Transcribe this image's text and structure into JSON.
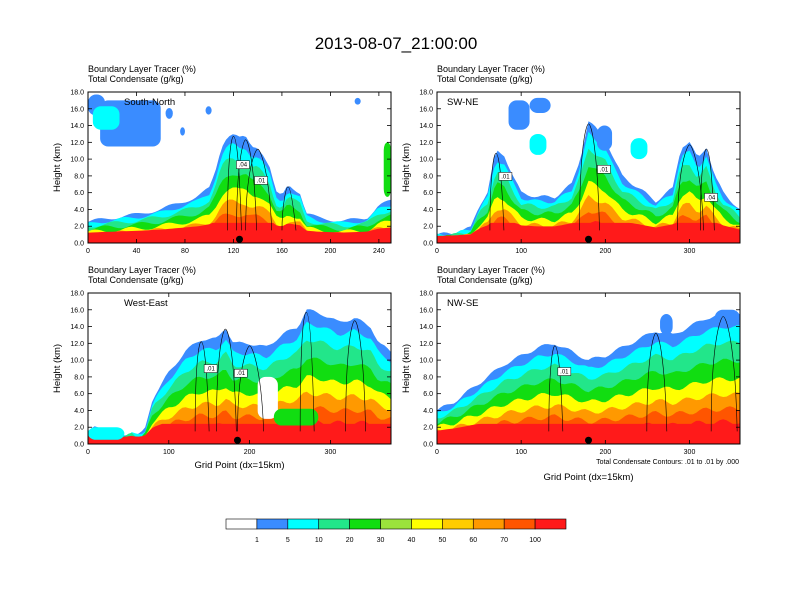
{
  "figure_title": "2013-08-07_21:00:00",
  "colorbar": {
    "levels": [
      "1",
      "5",
      "10",
      "20",
      "30",
      "40",
      "50",
      "60",
      "70",
      "100"
    ],
    "colors": [
      "#ffffff",
      "#3a8cff",
      "#00ffff",
      "#22e68a",
      "#11dd11",
      "#9be33c",
      "#ffff00",
      "#ffcc00",
      "#ff9900",
      "#ff5500",
      "#ff1a1a"
    ]
  },
  "contour_note": "Total Condensate Contours: .01 to .01 by .000",
  "chart_data": [
    {
      "type": "heatmap",
      "title_lines": [
        "Boundary Layer Tracer    (%)",
        "Total Condensate    (g/kg)"
      ],
      "label": "South-North",
      "ylabel": "Height (km)",
      "xlabel": "",
      "xlim": [
        0,
        250
      ],
      "ylim": [
        0,
        18
      ],
      "xticks": [
        0,
        40,
        80,
        120,
        160,
        200,
        240
      ],
      "yticks": [
        "0.0",
        "2.0",
        "4.0",
        "6.0",
        "8.0",
        "10.0",
        "12.0",
        "14.0",
        "16.0",
        "18.0"
      ],
      "marker_x": 125,
      "contour_labels": [
        ".04",
        ".01"
      ],
      "top_profile": [
        [
          0,
          2.5
        ],
        [
          10,
          2.8
        ],
        [
          20,
          3.0
        ],
        [
          30,
          3.2
        ],
        [
          40,
          3.4
        ],
        [
          50,
          3.7
        ],
        [
          60,
          4.0
        ],
        [
          70,
          4.5
        ],
        [
          80,
          5.0
        ],
        [
          90,
          5.5
        ],
        [
          100,
          6.5
        ],
        [
          105,
          8.5
        ],
        [
          110,
          11.5
        ],
        [
          115,
          12.8
        ],
        [
          120,
          13.0
        ],
        [
          125,
          12.5
        ],
        [
          130,
          12.6
        ],
        [
          135,
          11.5
        ],
        [
          140,
          11.5
        ],
        [
          145,
          10.5
        ],
        [
          150,
          9.0
        ],
        [
          155,
          6.0
        ],
        [
          160,
          5.5
        ],
        [
          165,
          7.0
        ],
        [
          170,
          6.5
        ],
        [
          175,
          6.0
        ],
        [
          180,
          3.5
        ],
        [
          190,
          3.0
        ],
        [
          200,
          2.8
        ],
        [
          210,
          2.6
        ],
        [
          220,
          2.8
        ],
        [
          230,
          3.0
        ],
        [
          240,
          4.5
        ],
        [
          250,
          5.0
        ]
      ],
      "blobs": [
        {
          "x": 0,
          "y": 15.2,
          "w": 14,
          "h": 2.5,
          "level": 1
        },
        {
          "x": 10,
          "y": 11.5,
          "w": 50,
          "h": 5.5,
          "level": 1
        },
        {
          "x": 4,
          "y": 13.5,
          "w": 22,
          "h": 2.8,
          "level": 2
        },
        {
          "x": 64,
          "y": 14.8,
          "w": 6,
          "h": 1.3,
          "level": 1
        },
        {
          "x": 76,
          "y": 12.8,
          "w": 4,
          "h": 1.0,
          "level": 1
        },
        {
          "x": 97,
          "y": 15.3,
          "w": 5,
          "h": 1.0,
          "level": 1
        },
        {
          "x": 220,
          "y": 16.5,
          "w": 5,
          "h": 0.8,
          "level": 1
        },
        {
          "x": 244,
          "y": 5.5,
          "w": 6,
          "h": 6.5,
          "level": 3
        }
      ]
    },
    {
      "type": "heatmap",
      "title_lines": [
        "Boundary Layer Tracer    (%)",
        "Total Condensate    (g/kg)"
      ],
      "label": "SW-NE",
      "ylabel": "Height (km)",
      "xlabel": "",
      "xlim": [
        0,
        360
      ],
      "ylim": [
        0,
        18
      ],
      "xticks": [
        0,
        100,
        200,
        300
      ],
      "yticks": [
        "0.0",
        "2.0",
        "4.0",
        "6.0",
        "8.0",
        "10.0",
        "12.0",
        "14.0",
        "16.0",
        "18.0"
      ],
      "marker_x": 180,
      "contour_labels": [
        ".01",
        ".01",
        ".04"
      ],
      "top_profile": [
        [
          0,
          1.0
        ],
        [
          20,
          1.2
        ],
        [
          40,
          1.8
        ],
        [
          50,
          4.5
        ],
        [
          60,
          6.0
        ],
        [
          70,
          11.0
        ],
        [
          80,
          10.5
        ],
        [
          90,
          8.0
        ],
        [
          100,
          6.0
        ],
        [
          120,
          5.5
        ],
        [
          140,
          5.5
        ],
        [
          160,
          7.0
        ],
        [
          170,
          10.0
        ],
        [
          180,
          14.5
        ],
        [
          190,
          13.5
        ],
        [
          200,
          12.5
        ],
        [
          210,
          10.0
        ],
        [
          220,
          8.0
        ],
        [
          240,
          6.5
        ],
        [
          260,
          5.0
        ],
        [
          280,
          6.5
        ],
        [
          290,
          11.5
        ],
        [
          300,
          12.0
        ],
        [
          310,
          10.0
        ],
        [
          320,
          11.5
        ],
        [
          330,
          8.0
        ],
        [
          340,
          6.0
        ],
        [
          350,
          5.0
        ],
        [
          360,
          4.0
        ]
      ],
      "blobs": [
        {
          "x": 85,
          "y": 13.5,
          "w": 25,
          "h": 3.5,
          "level": 1
        },
        {
          "x": 110,
          "y": 15.5,
          "w": 25,
          "h": 1.8,
          "level": 1
        },
        {
          "x": 190,
          "y": 11.0,
          "w": 18,
          "h": 3.0,
          "level": 1
        },
        {
          "x": 230,
          "y": 10.0,
          "w": 20,
          "h": 2.5,
          "level": 2
        },
        {
          "x": 110,
          "y": 10.5,
          "w": 20,
          "h": 2.5,
          "level": 2
        }
      ]
    },
    {
      "type": "heatmap",
      "title_lines": [
        "Boundary Layer Tracer    (%)",
        "Total Condensate    (g/kg)"
      ],
      "label": "West-East",
      "ylabel": "Height (km)",
      "xlabel": "Grid Point (dx=15km)",
      "xlim": [
        0,
        375
      ],
      "ylim": [
        0,
        18
      ],
      "xticks": [
        0,
        100,
        200,
        300
      ],
      "yticks": [
        "0.0",
        "2.0",
        "4.0",
        "6.0",
        "8.0",
        "10.0",
        "12.0",
        "14.0",
        "16.0",
        "18.0"
      ],
      "marker_x": 185,
      "contour_labels": [
        ".01",
        ".01"
      ],
      "top_profile": [
        [
          0,
          1.5
        ],
        [
          10,
          2.0
        ],
        [
          20,
          1.5
        ],
        [
          40,
          0.8
        ],
        [
          55,
          1.5
        ],
        [
          60,
          1.0
        ],
        [
          70,
          1.5
        ],
        [
          80,
          5.5
        ],
        [
          100,
          8.5
        ],
        [
          120,
          11.0
        ],
        [
          140,
          12.5
        ],
        [
          160,
          12.5
        ],
        [
          170,
          14.0
        ],
        [
          180,
          12.0
        ],
        [
          200,
          12.0
        ],
        [
          220,
          11.5
        ],
        [
          240,
          13.0
        ],
        [
          250,
          13.5
        ],
        [
          260,
          14.0
        ],
        [
          270,
          16.0
        ],
        [
          290,
          15.5
        ],
        [
          310,
          14.5
        ],
        [
          330,
          15.0
        ],
        [
          350,
          14.0
        ],
        [
          360,
          12.0
        ],
        [
          375,
          11.0
        ]
      ],
      "blobs": [
        {
          "x": 0,
          "y": 0.5,
          "w": 45,
          "h": 1.5,
          "level": 2
        },
        {
          "x": 210,
          "y": 3.0,
          "w": 25,
          "h": 5.0,
          "level": 0
        },
        {
          "x": 230,
          "y": 2.2,
          "w": 55,
          "h": 2.0,
          "level": 3
        }
      ]
    },
    {
      "type": "heatmap",
      "title_lines": [
        "Boundary Layer Tracer    (%)",
        "Total Condensate    (g/kg)"
      ],
      "label": "NW-SE",
      "ylabel": "Height (km)",
      "xlabel": "Grid Point (dx=15km)",
      "xlim": [
        0,
        360
      ],
      "ylim": [
        0,
        18
      ],
      "xticks": [
        0,
        100,
        200,
        300
      ],
      "yticks": [
        "0.0",
        "2.0",
        "4.0",
        "6.0",
        "8.0",
        "10.0",
        "12.0",
        "14.0",
        "16.0",
        "18.0"
      ],
      "marker_x": 180,
      "contour_labels": [
        ".01"
      ],
      "top_profile": [
        [
          0,
          4.0
        ],
        [
          20,
          5.0
        ],
        [
          40,
          6.5
        ],
        [
          60,
          8.0
        ],
        [
          80,
          9.5
        ],
        [
          100,
          10.5
        ],
        [
          120,
          11.5
        ],
        [
          140,
          12.0
        ],
        [
          160,
          11.0
        ],
        [
          180,
          10.0
        ],
        [
          200,
          10.5
        ],
        [
          220,
          11.5
        ],
        [
          240,
          12.5
        ],
        [
          260,
          13.5
        ],
        [
          280,
          13.0
        ],
        [
          300,
          14.0
        ],
        [
          320,
          15.0
        ],
        [
          340,
          15.5
        ],
        [
          360,
          15.5
        ]
      ],
      "blobs": [
        {
          "x": 265,
          "y": 13.0,
          "w": 15,
          "h": 2.5,
          "level": 1
        },
        {
          "x": 330,
          "y": 14.0,
          "w": 30,
          "h": 2.0,
          "level": 1
        }
      ]
    }
  ]
}
